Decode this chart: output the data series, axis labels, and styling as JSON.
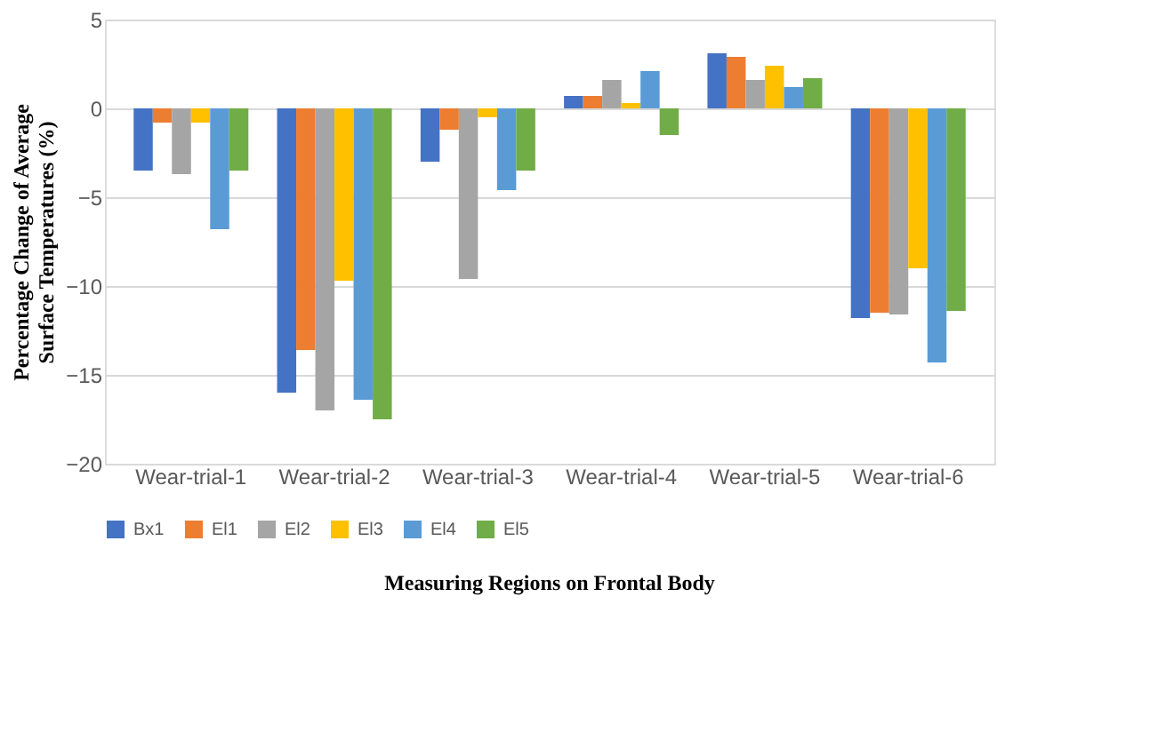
{
  "chart_data": {
    "type": "bar",
    "xlabel": "Measuring Regions on Frontal Body",
    "ylabel": "Percentage Change of Average Surface Temperatures (%)",
    "categories": [
      "Wear-trial-1",
      "Wear-trial-2",
      "Wear-trial-3",
      "Wear-trial-4",
      "Wear-trial-5",
      "Wear-trial-6"
    ],
    "series": [
      {
        "name": "Bx1",
        "color": "#4472c4",
        "values": [
          -3.5,
          -16.0,
          -3.0,
          0.7,
          3.1,
          -11.8
        ]
      },
      {
        "name": "El1",
        "color": "#ed7d31",
        "values": [
          -0.8,
          -13.6,
          -1.2,
          0.7,
          2.9,
          -11.5
        ]
      },
      {
        "name": "El2",
        "color": "#a5a5a5",
        "values": [
          -3.7,
          -17.0,
          -9.6,
          1.6,
          1.6,
          -11.6
        ]
      },
      {
        "name": "El3",
        "color": "#ffc000",
        "values": [
          -0.8,
          -9.7,
          -0.5,
          0.3,
          2.4,
          -9.0
        ]
      },
      {
        "name": "El4",
        "color": "#5b9bd5",
        "values": [
          -6.8,
          -16.4,
          -4.6,
          2.1,
          1.2,
          -14.3
        ]
      },
      {
        "name": "El5",
        "color": "#70ad47",
        "values": [
          -3.5,
          -17.5,
          -3.5,
          -1.5,
          1.7,
          -11.4
        ]
      }
    ],
    "ylim": [
      -20,
      5
    ],
    "yticks": [
      5,
      0,
      -5,
      -10,
      -15,
      -20
    ],
    "grid": "y",
    "legend": "bottom"
  }
}
